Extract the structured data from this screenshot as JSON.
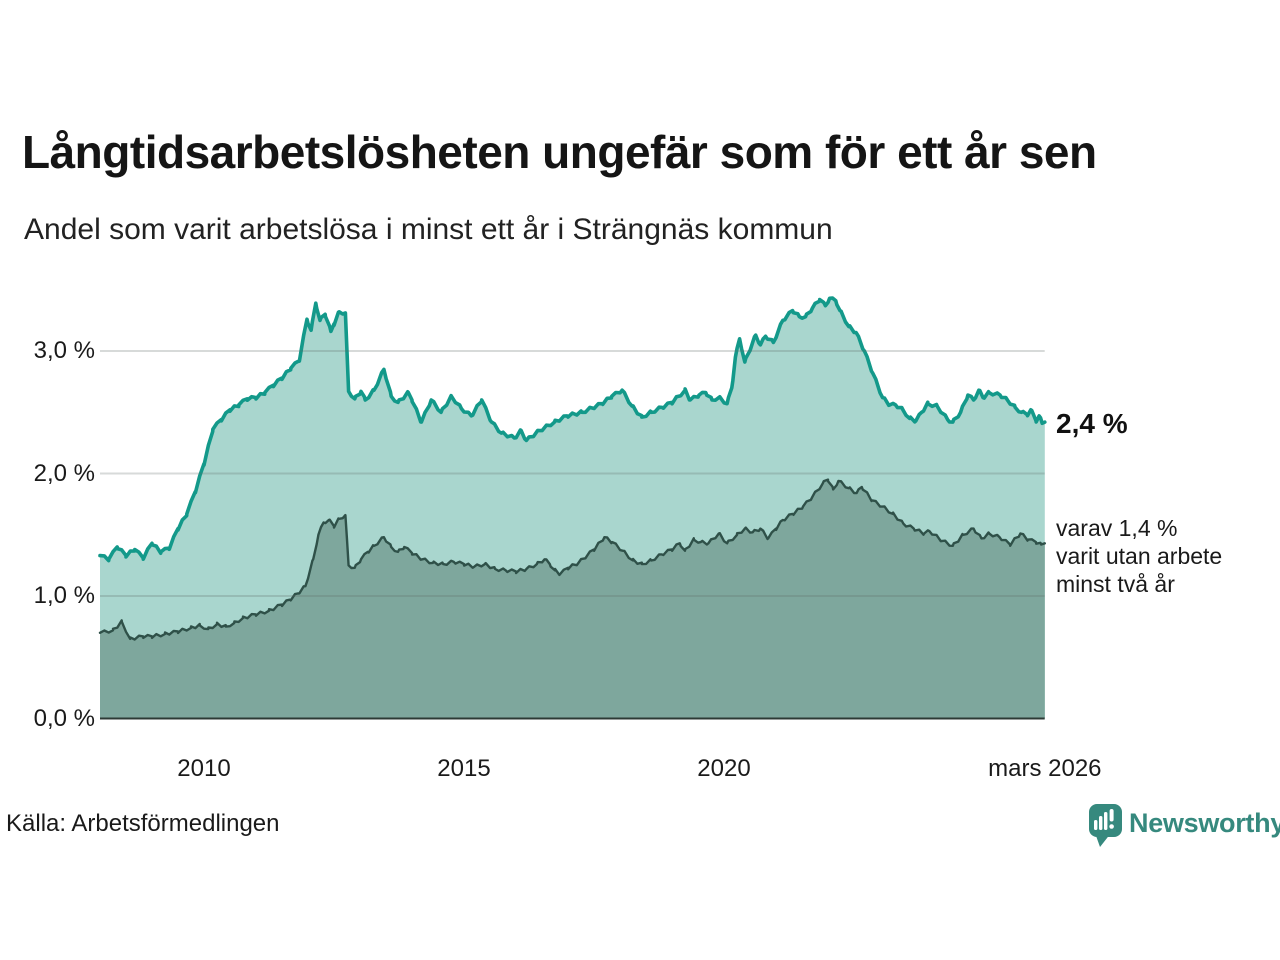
{
  "header": {
    "title": "Långtidsarbetslösheten ungefär som för ett år sen",
    "subtitle": "Andel som varit arbetslösa i minst ett år i Strängnäs kommun"
  },
  "annotations": {
    "latest_value": "2,4 %",
    "secondary": [
      "varav 1,4 %",
      "varit utan arbete",
      "minst två år"
    ]
  },
  "footer": {
    "source": "Källa: Arbetsförmedlingen",
    "brand": "Newsworthy"
  },
  "axes": {
    "y_ticks": [
      {
        "label": "3,0 %",
        "value": 3.0
      },
      {
        "label": "2,0 %",
        "value": 2.0
      },
      {
        "label": "1,0 %",
        "value": 1.0
      },
      {
        "label": "0,0 %",
        "value": 0.0
      }
    ],
    "x_ticks": [
      {
        "label": "2010",
        "t": 2010
      },
      {
        "label": "2015",
        "t": 2015
      },
      {
        "label": "2020",
        "t": 2020
      },
      {
        "label": "mars 2026",
        "t": 2026.17
      }
    ]
  },
  "colors": {
    "upper_line": "#13998a",
    "upper_fill": "#a9d6ce",
    "lower_line": "#2f5149",
    "lower_fill": "#7ea79d",
    "gridline": "#5f6a66",
    "baseline": "#2c3a35",
    "brand_teal": "#36897e",
    "text": "#1a1a1a"
  },
  "chart_data": {
    "type": "area",
    "title": "Långtidsarbetslösheten ungefär som för ett år sen",
    "subtitle": "Andel som varit arbetslösa i minst ett år i Strängnäs kommun",
    "unit": "%",
    "x_range": [
      2008.0,
      2026.17
    ],
    "y_range": [
      0,
      3.5
    ],
    "grid": true,
    "legend_position": "right-annotations",
    "jitter": 0.012,
    "series": [
      {
        "name": "Andel arbetslösa minst ett år",
        "latest_label": "2,4 %",
        "points": [
          [
            2008.0,
            1.33
          ],
          [
            2008.17,
            1.3
          ],
          [
            2008.33,
            1.4
          ],
          [
            2008.5,
            1.33
          ],
          [
            2008.67,
            1.38
          ],
          [
            2008.83,
            1.31
          ],
          [
            2009.0,
            1.43
          ],
          [
            2009.17,
            1.36
          ],
          [
            2009.33,
            1.39
          ],
          [
            2009.5,
            1.55
          ],
          [
            2009.67,
            1.67
          ],
          [
            2009.83,
            1.85
          ],
          [
            2010.0,
            2.08
          ],
          [
            2010.17,
            2.36
          ],
          [
            2010.33,
            2.44
          ],
          [
            2010.5,
            2.52
          ],
          [
            2010.67,
            2.56
          ],
          [
            2010.83,
            2.61
          ],
          [
            2011.0,
            2.62
          ],
          [
            2011.17,
            2.66
          ],
          [
            2011.33,
            2.72
          ],
          [
            2011.5,
            2.78
          ],
          [
            2011.67,
            2.86
          ],
          [
            2011.83,
            2.92
          ],
          [
            2011.98,
            3.26
          ],
          [
            2012.06,
            3.17
          ],
          [
            2012.15,
            3.39
          ],
          [
            2012.23,
            3.25
          ],
          [
            2012.33,
            3.3
          ],
          [
            2012.44,
            3.16
          ],
          [
            2012.5,
            3.22
          ],
          [
            2012.6,
            3.32
          ],
          [
            2012.72,
            3.31
          ],
          [
            2012.78,
            2.67
          ],
          [
            2012.9,
            2.61
          ],
          [
            2013.02,
            2.67
          ],
          [
            2013.1,
            2.6
          ],
          [
            2013.27,
            2.68
          ],
          [
            2013.46,
            2.85
          ],
          [
            2013.6,
            2.63
          ],
          [
            2013.73,
            2.58
          ],
          [
            2013.93,
            2.66
          ],
          [
            2014.0,
            2.6
          ],
          [
            2014.18,
            2.42
          ],
          [
            2014.37,
            2.6
          ],
          [
            2014.56,
            2.5
          ],
          [
            2014.76,
            2.63
          ],
          [
            2014.95,
            2.53
          ],
          [
            2015.14,
            2.47
          ],
          [
            2015.34,
            2.6
          ],
          [
            2015.53,
            2.42
          ],
          [
            2015.72,
            2.33
          ],
          [
            2015.97,
            2.29
          ],
          [
            2016.1,
            2.35
          ],
          [
            2016.2,
            2.27
          ],
          [
            2016.45,
            2.35
          ],
          [
            2016.74,
            2.42
          ],
          [
            2016.98,
            2.47
          ],
          [
            2017.27,
            2.5
          ],
          [
            2017.65,
            2.57
          ],
          [
            2017.84,
            2.63
          ],
          [
            2018.04,
            2.68
          ],
          [
            2018.23,
            2.55
          ],
          [
            2018.42,
            2.46
          ],
          [
            2018.6,
            2.5
          ],
          [
            2018.81,
            2.54
          ],
          [
            2019.0,
            2.58
          ],
          [
            2019.25,
            2.68
          ],
          [
            2019.35,
            2.6
          ],
          [
            2019.52,
            2.64
          ],
          [
            2019.65,
            2.66
          ],
          [
            2019.77,
            2.6
          ],
          [
            2019.9,
            2.62
          ],
          [
            2020.06,
            2.57
          ],
          [
            2020.15,
            2.7
          ],
          [
            2020.22,
            2.95
          ],
          [
            2020.3,
            3.1
          ],
          [
            2020.4,
            2.91
          ],
          [
            2020.61,
            3.13
          ],
          [
            2020.7,
            3.05
          ],
          [
            2020.8,
            3.12
          ],
          [
            2020.95,
            3.07
          ],
          [
            2021.13,
            3.25
          ],
          [
            2021.32,
            3.33
          ],
          [
            2021.45,
            3.28
          ],
          [
            2021.57,
            3.28
          ],
          [
            2021.7,
            3.35
          ],
          [
            2021.84,
            3.42
          ],
          [
            2021.95,
            3.37
          ],
          [
            2022.03,
            3.43
          ],
          [
            2022.15,
            3.41
          ],
          [
            2022.23,
            3.33
          ],
          [
            2022.4,
            3.2
          ],
          [
            2022.54,
            3.15
          ],
          [
            2022.7,
            3.0
          ],
          [
            2022.86,
            2.82
          ],
          [
            2023.05,
            2.62
          ],
          [
            2023.19,
            2.56
          ],
          [
            2023.3,
            2.56
          ],
          [
            2023.44,
            2.52
          ],
          [
            2023.57,
            2.45
          ],
          [
            2023.69,
            2.43
          ],
          [
            2023.8,
            2.5
          ],
          [
            2023.92,
            2.57
          ],
          [
            2024.1,
            2.55
          ],
          [
            2024.3,
            2.44
          ],
          [
            2024.4,
            2.42
          ],
          [
            2024.55,
            2.5
          ],
          [
            2024.69,
            2.64
          ],
          [
            2024.8,
            2.6
          ],
          [
            2024.9,
            2.68
          ],
          [
            2024.98,
            2.62
          ],
          [
            2025.1,
            2.66
          ],
          [
            2025.31,
            2.64
          ],
          [
            2025.45,
            2.6
          ],
          [
            2025.6,
            2.54
          ],
          [
            2025.72,
            2.5
          ],
          [
            2025.83,
            2.48
          ],
          [
            2025.9,
            2.52
          ],
          [
            2026.0,
            2.43
          ],
          [
            2026.06,
            2.47
          ],
          [
            2026.12,
            2.41
          ],
          [
            2026.17,
            2.42
          ]
        ]
      },
      {
        "name": "varav utan arbete minst två år",
        "latest_label": "varav 1,4 %",
        "points": [
          [
            2008.0,
            0.7
          ],
          [
            2008.25,
            0.72
          ],
          [
            2008.42,
            0.79
          ],
          [
            2008.58,
            0.65
          ],
          [
            2008.83,
            0.67
          ],
          [
            2009.0,
            0.67
          ],
          [
            2009.25,
            0.69
          ],
          [
            2009.5,
            0.71
          ],
          [
            2009.75,
            0.74
          ],
          [
            2009.92,
            0.76
          ],
          [
            2010.08,
            0.73
          ],
          [
            2010.25,
            0.77
          ],
          [
            2010.42,
            0.75
          ],
          [
            2010.58,
            0.78
          ],
          [
            2010.75,
            0.82
          ],
          [
            2011.0,
            0.85
          ],
          [
            2011.25,
            0.88
          ],
          [
            2011.5,
            0.93
          ],
          [
            2011.65,
            0.97
          ],
          [
            2011.8,
            1.02
          ],
          [
            2011.95,
            1.08
          ],
          [
            2012.1,
            1.3
          ],
          [
            2012.2,
            1.5
          ],
          [
            2012.3,
            1.6
          ],
          [
            2012.4,
            1.62
          ],
          [
            2012.5,
            1.57
          ],
          [
            2012.6,
            1.63
          ],
          [
            2012.72,
            1.66
          ],
          [
            2012.78,
            1.25
          ],
          [
            2012.9,
            1.23
          ],
          [
            2013.02,
            1.3
          ],
          [
            2013.15,
            1.36
          ],
          [
            2013.27,
            1.41
          ],
          [
            2013.46,
            1.48
          ],
          [
            2013.6,
            1.4
          ],
          [
            2013.73,
            1.36
          ],
          [
            2013.85,
            1.4
          ],
          [
            2014.0,
            1.35
          ],
          [
            2014.2,
            1.3
          ],
          [
            2014.4,
            1.27
          ],
          [
            2014.6,
            1.26
          ],
          [
            2014.8,
            1.28
          ],
          [
            2015.0,
            1.26
          ],
          [
            2015.2,
            1.24
          ],
          [
            2015.4,
            1.26
          ],
          [
            2015.6,
            1.22
          ],
          [
            2015.8,
            1.21
          ],
          [
            2016.0,
            1.2
          ],
          [
            2016.2,
            1.22
          ],
          [
            2016.4,
            1.26
          ],
          [
            2016.55,
            1.3
          ],
          [
            2016.65,
            1.26
          ],
          [
            2016.75,
            1.21
          ],
          [
            2016.85,
            1.18
          ],
          [
            2017.0,
            1.23
          ],
          [
            2017.2,
            1.27
          ],
          [
            2017.5,
            1.38
          ],
          [
            2017.7,
            1.48
          ],
          [
            2017.85,
            1.44
          ],
          [
            2018.05,
            1.37
          ],
          [
            2018.25,
            1.29
          ],
          [
            2018.42,
            1.26
          ],
          [
            2018.6,
            1.29
          ],
          [
            2018.8,
            1.34
          ],
          [
            2019.0,
            1.38
          ],
          [
            2019.15,
            1.43
          ],
          [
            2019.25,
            1.37
          ],
          [
            2019.42,
            1.46
          ],
          [
            2019.55,
            1.44
          ],
          [
            2019.7,
            1.43
          ],
          [
            2019.9,
            1.51
          ],
          [
            2020.06,
            1.43
          ],
          [
            2020.25,
            1.5
          ],
          [
            2020.4,
            1.55
          ],
          [
            2020.55,
            1.52
          ],
          [
            2020.7,
            1.55
          ],
          [
            2020.85,
            1.47
          ],
          [
            2021.0,
            1.55
          ],
          [
            2021.13,
            1.62
          ],
          [
            2021.32,
            1.67
          ],
          [
            2021.52,
            1.73
          ],
          [
            2021.7,
            1.81
          ],
          [
            2021.9,
            1.92
          ],
          [
            2022.0,
            1.95
          ],
          [
            2022.1,
            1.87
          ],
          [
            2022.2,
            1.94
          ],
          [
            2022.4,
            1.88
          ],
          [
            2022.55,
            1.84
          ],
          [
            2022.65,
            1.89
          ],
          [
            2022.85,
            1.78
          ],
          [
            2023.05,
            1.73
          ],
          [
            2023.25,
            1.67
          ],
          [
            2023.45,
            1.59
          ],
          [
            2023.65,
            1.55
          ],
          [
            2023.85,
            1.51
          ],
          [
            2023.95,
            1.53
          ],
          [
            2024.2,
            1.45
          ],
          [
            2024.4,
            1.41
          ],
          [
            2024.6,
            1.5
          ],
          [
            2024.8,
            1.55
          ],
          [
            2024.95,
            1.47
          ],
          [
            2025.1,
            1.51
          ],
          [
            2025.3,
            1.48
          ],
          [
            2025.5,
            1.42
          ],
          [
            2025.7,
            1.51
          ],
          [
            2025.85,
            1.46
          ],
          [
            2026.0,
            1.44
          ],
          [
            2026.1,
            1.42
          ],
          [
            2026.17,
            1.43
          ]
        ]
      }
    ]
  }
}
